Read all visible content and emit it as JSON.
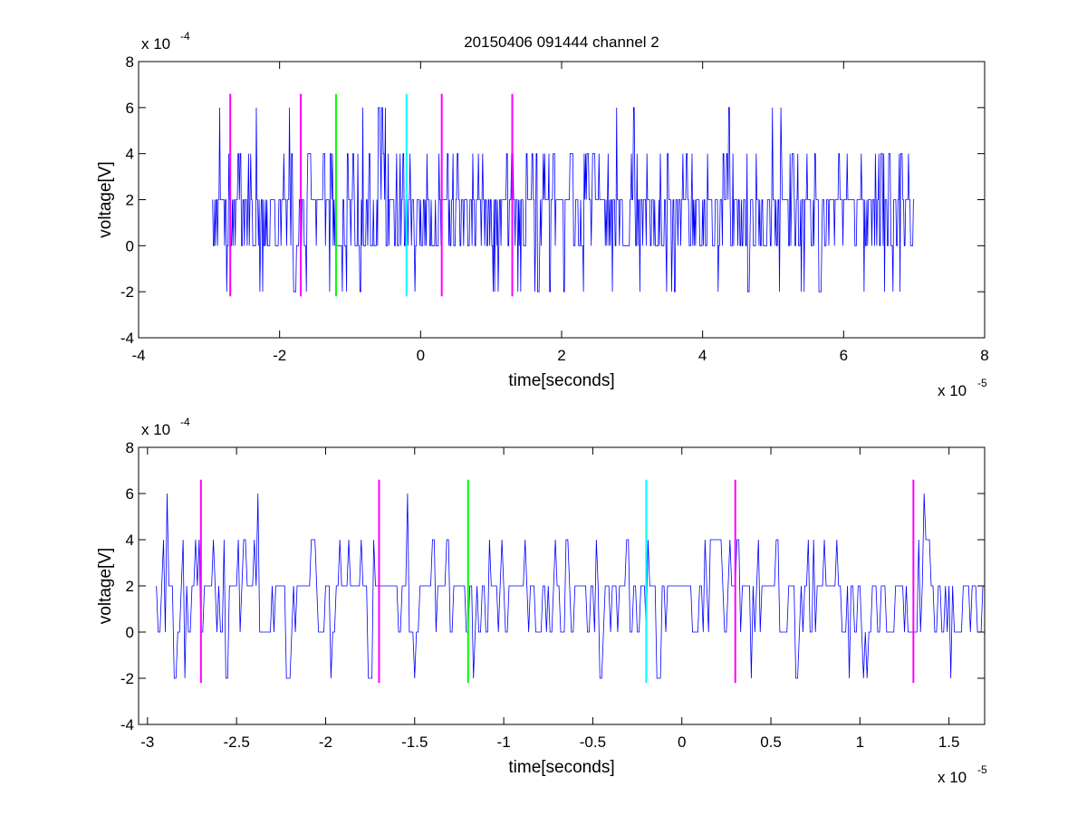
{
  "figure": {
    "title": "20150406 091444 channel 2",
    "background": "#ffffff"
  },
  "chart_data": [
    {
      "type": "line",
      "title": "20150406 091444 channel 2",
      "xlabel": "time[seconds]",
      "ylabel": "voltage[V]",
      "x_exponent_label": "x 10",
      "x_exponent": "-5",
      "y_exponent_label": "x 10",
      "y_exponent": "-4",
      "xlim": [
        -4e-05,
        8e-05
      ],
      "ylim": [
        -0.0004,
        0.0008
      ],
      "xticks": [
        -4e-05,
        -2e-05,
        0,
        2e-05,
        4e-05,
        6e-05,
        8e-05
      ],
      "xtick_labels": [
        "-4",
        "-2",
        "0",
        "2",
        "4",
        "6",
        "8"
      ],
      "yticks": [
        -0.0004,
        -0.0002,
        0,
        0.0002,
        0.0004,
        0.0006,
        0.0008
      ],
      "ytick_labels": [
        "-4",
        "-2",
        "0",
        "2",
        "4",
        "6",
        "8"
      ],
      "grid": false,
      "signal": {
        "color": "#0000ff",
        "t_start": -2.95e-05,
        "t_end": 7e-05,
        "dt": 1e-07,
        "levels": [
          -0.0002,
          0,
          0.0002,
          0.0004,
          0.0006
        ]
      },
      "markers": [
        {
          "x": -2.7e-05,
          "color": "#ff00ff",
          "y_range": [
            -0.00022,
            0.00066
          ]
        },
        {
          "x": -1.7e-05,
          "color": "#ff00ff",
          "y_range": [
            -0.00022,
            0.00066
          ]
        },
        {
          "x": -1.2e-05,
          "color": "#00ff00",
          "y_range": [
            -0.00022,
            0.00066
          ]
        },
        {
          "x": -2e-06,
          "color": "#00ffff",
          "y_range": [
            -0.00022,
            0.00066
          ]
        },
        {
          "x": 3e-06,
          "color": "#ff00ff",
          "y_range": [
            -0.00022,
            0.00066
          ]
        },
        {
          "x": 1.3e-05,
          "color": "#ff00ff",
          "y_range": [
            -0.00022,
            0.00066
          ]
        }
      ]
    },
    {
      "type": "line",
      "title": "",
      "xlabel": "time[seconds]",
      "ylabel": "voltage[V]",
      "x_exponent_label": "x 10",
      "x_exponent": "-5",
      "y_exponent_label": "x 10",
      "y_exponent": "-4",
      "xlim": [
        -3.05e-05,
        1.7e-05
      ],
      "ylim": [
        -0.0004,
        0.0008
      ],
      "xticks": [
        -3e-05,
        -2.5e-05,
        -2e-05,
        -1.5e-05,
        -1e-05,
        -5e-06,
        0,
        5e-06,
        1e-05,
        1.5e-05
      ],
      "xtick_labels": [
        "-3",
        "-2.5",
        "-2",
        "-1.5",
        "-1",
        "-0.5",
        "0",
        "0.5",
        "1",
        "1.5"
      ],
      "yticks": [
        -0.0004,
        -0.0002,
        0,
        0.0002,
        0.0004,
        0.0006,
        0.0008
      ],
      "ytick_labels": [
        "-4",
        "-2",
        "0",
        "2",
        "4",
        "6",
        "8"
      ],
      "grid": false,
      "signal": {
        "color": "#0000ff",
        "t_start": -2.95e-05,
        "t_end": 1.7e-05,
        "dt": 1e-07,
        "levels": [
          -0.0002,
          0,
          0.0002,
          0.0004,
          0.0006
        ]
      },
      "markers": [
        {
          "x": -2.7e-05,
          "color": "#ff00ff",
          "y_range": [
            -0.00022,
            0.00066
          ]
        },
        {
          "x": -1.7e-05,
          "color": "#ff00ff",
          "y_range": [
            -0.00022,
            0.00066
          ]
        },
        {
          "x": -1.2e-05,
          "color": "#00ff00",
          "y_range": [
            -0.00022,
            0.00066
          ]
        },
        {
          "x": -2e-06,
          "color": "#00ffff",
          "y_range": [
            -0.00022,
            0.00066
          ]
        },
        {
          "x": 3e-06,
          "color": "#ff00ff",
          "y_range": [
            -0.00022,
            0.00066
          ]
        },
        {
          "x": 1.3e-05,
          "color": "#ff00ff",
          "y_range": [
            -0.00022,
            0.00066
          ]
        }
      ]
    }
  ]
}
